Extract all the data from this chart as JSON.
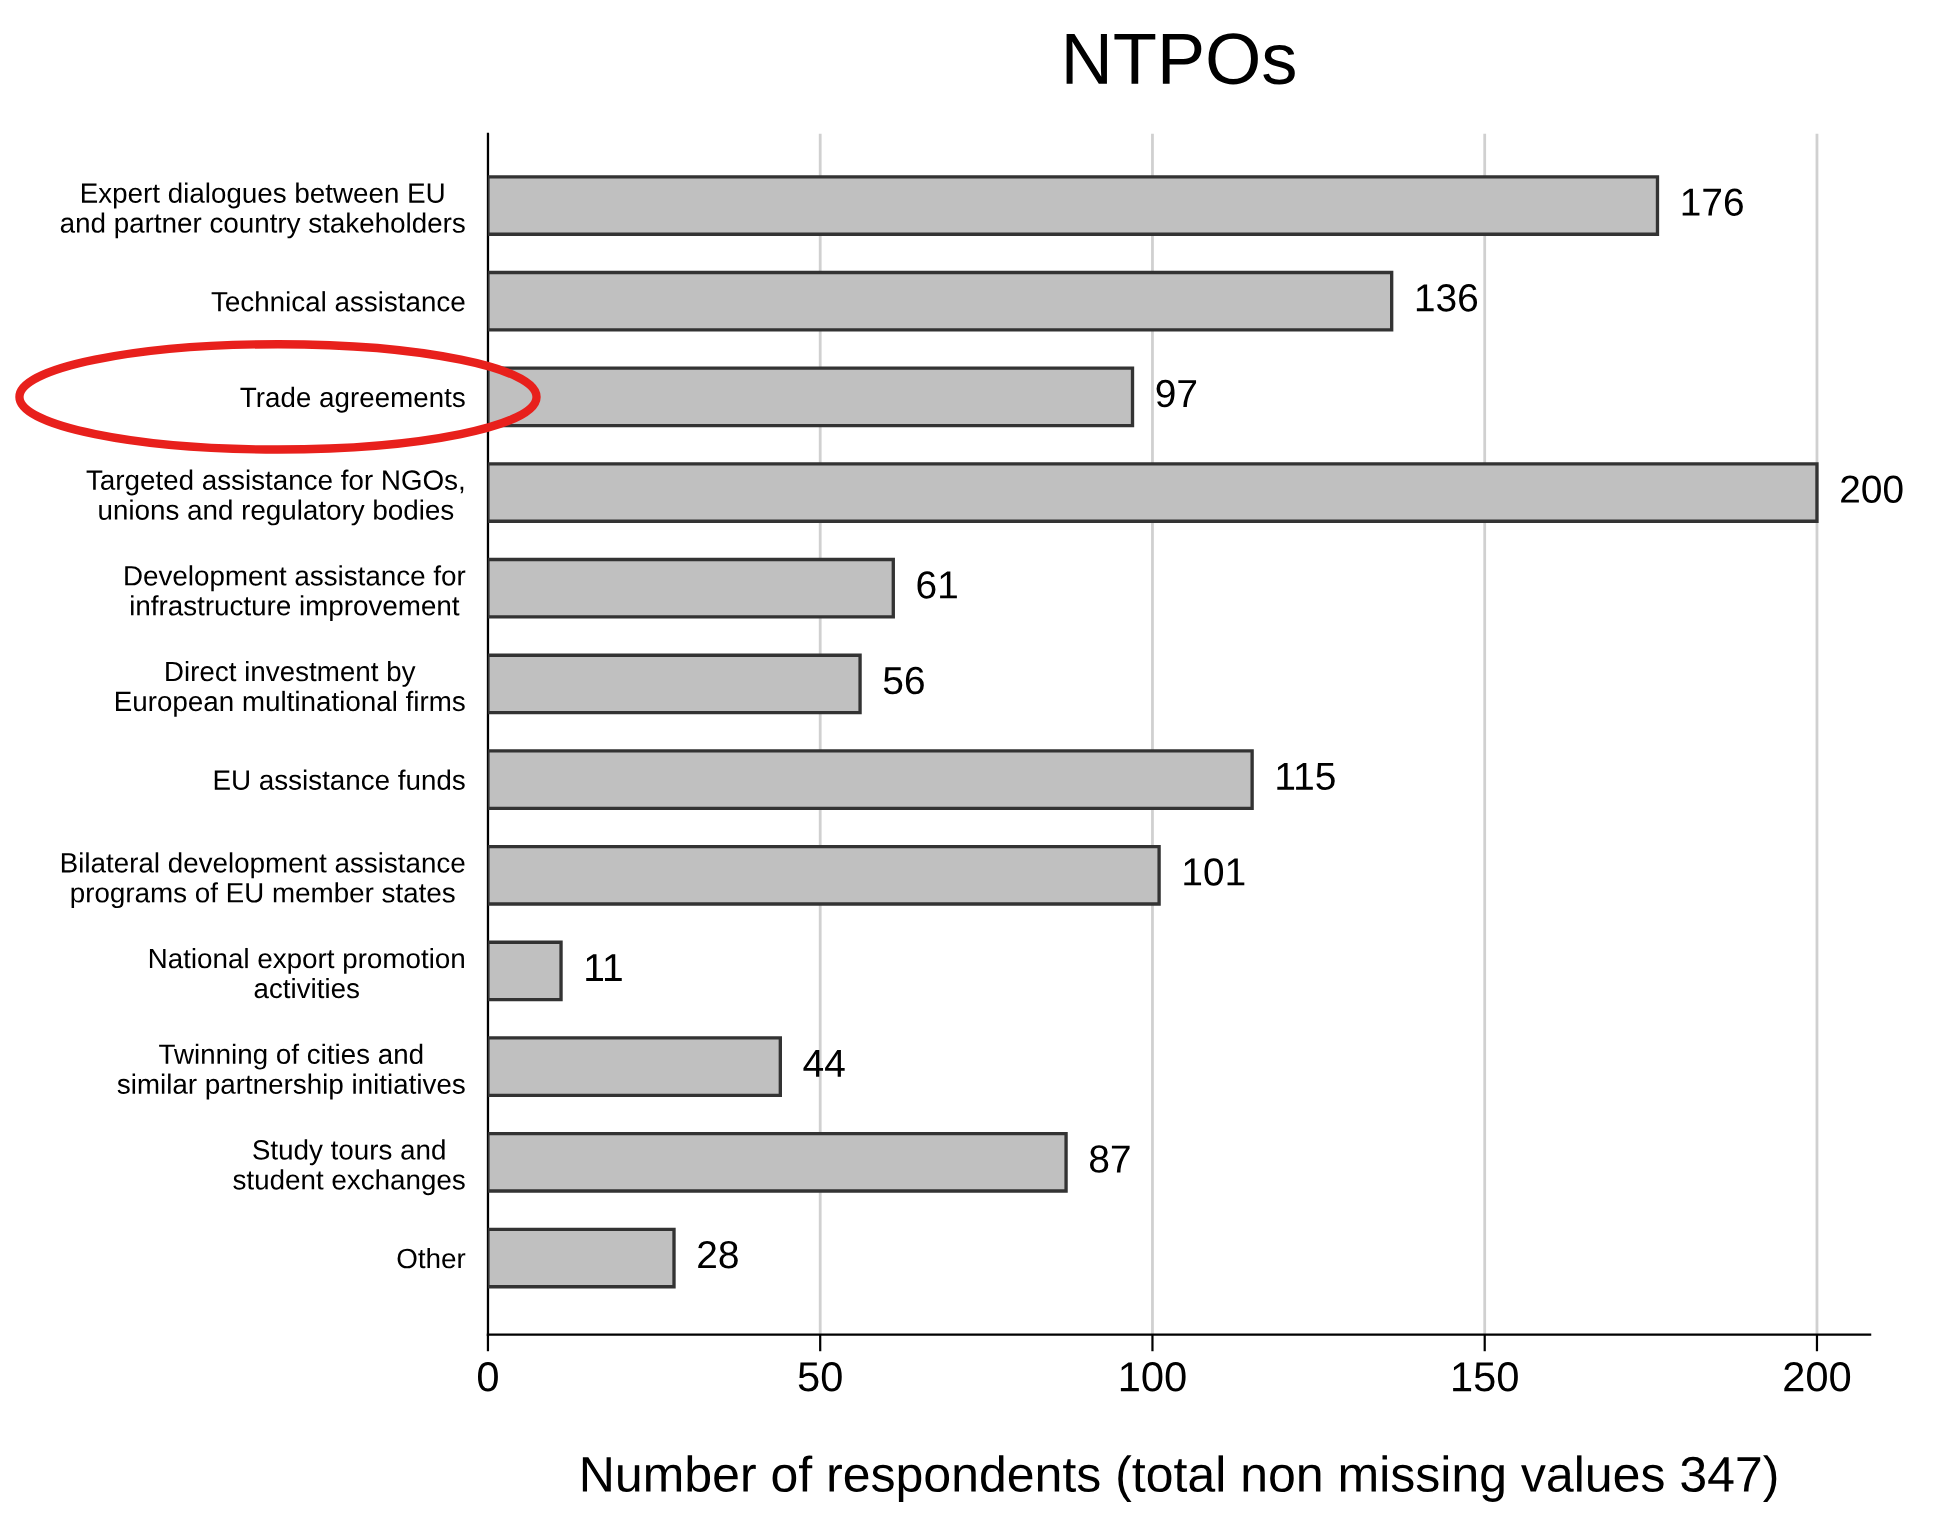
{
  "chart_data": {
    "type": "bar",
    "orientation": "horizontal",
    "title": "NTPOs",
    "xlabel": "Number of respondents (total non missing values 347)",
    "categories": [
      "Expert dialogues between EU\nand partner country stakeholders",
      "Technical assistance",
      "Trade agreements",
      "Targeted assistance for NGOs,\nunions and regulatory bodies",
      "Development assistance for\ninfrastructure improvement",
      "Direct investment by\nEuropean multinational firms",
      "EU assistance funds",
      "Bilateral development assistance\nprograms of EU member states",
      "National export promotion\nactivities",
      "Twinning of cities and\nsimilar partnership initiatives",
      "Study tours and\nstudent exchanges",
      "Other"
    ],
    "values": [
      176,
      136,
      97,
      200,
      61,
      56,
      115,
      101,
      11,
      44,
      87,
      28
    ],
    "color": "#c0c0c0",
    "data_labels": true,
    "xlim": [
      0,
      208
    ],
    "xticks": [
      0,
      50,
      100,
      150,
      200
    ],
    "grid": "x"
  }
}
